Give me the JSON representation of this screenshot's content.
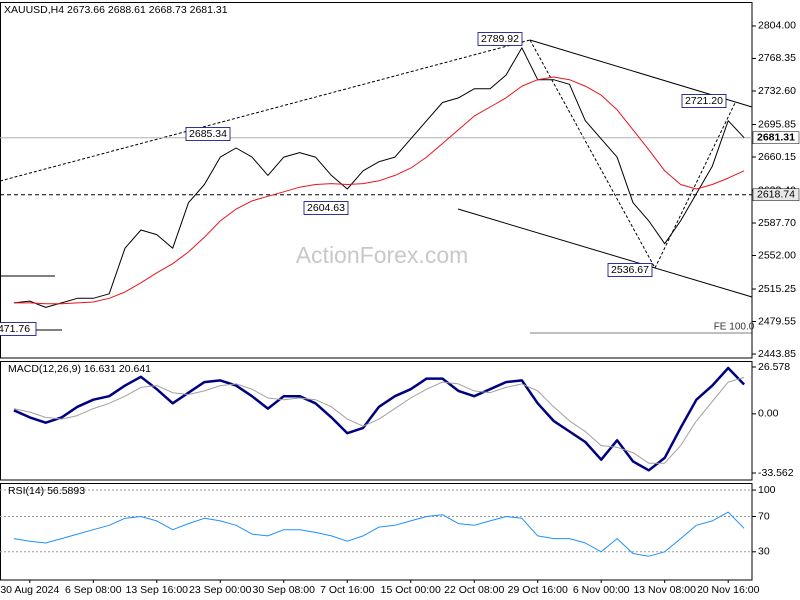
{
  "chart_data": [
    {
      "type": "line",
      "title": "XAUUSD,H4  2673.66 2688.61 2668.73 2681.31",
      "watermark": "ActionForex.com",
      "series": [
        {
          "color": "#000000",
          "values": [
            2500,
            2502,
            2495,
            2500,
            2505,
            2505,
            2510,
            2560,
            2580,
            2575,
            2560,
            2610,
            2630,
            2660,
            2670,
            2660,
            2640,
            2660,
            2665,
            2660,
            2640,
            2625,
            2645,
            2655,
            2660,
            2680,
            2700,
            2720,
            2725,
            2735,
            2735,
            2750,
            2780,
            2745,
            2745,
            2740,
            2700,
            2680,
            2660,
            2610,
            2590,
            2565,
            2590,
            2620,
            2650,
            2700,
            2681.31
          ]
        },
        {
          "color": "#e8141c",
          "values": [
            2500,
            2500,
            2499,
            2499,
            2500,
            2501,
            2505,
            2512,
            2522,
            2533,
            2543,
            2556,
            2572,
            2590,
            2603,
            2612,
            2617,
            2622,
            2627,
            2630,
            2631,
            2630,
            2631,
            2634,
            2640,
            2648,
            2660,
            2675,
            2690,
            2705,
            2715,
            2725,
            2738,
            2745,
            2748,
            2745,
            2738,
            2728,
            2712,
            2690,
            2668,
            2645,
            2630,
            2625,
            2630,
            2637,
            2645
          ]
        }
      ],
      "ylim": [
        2439.5,
        2830.3
      ],
      "yticks": [
        {
          "value": 2804,
          "label": "2804.00"
        },
        {
          "value": 2768.35,
          "label": "2768.35"
        },
        {
          "value": 2732.6,
          "label": "2732.60"
        },
        {
          "value": 2695.85,
          "label": "2695.85"
        },
        {
          "value": 2660.15,
          "label": "2660.15"
        },
        {
          "value": 2623.4,
          "label": "2623.40"
        },
        {
          "value": 2587.7,
          "label": "2587.70"
        },
        {
          "value": 2552,
          "label": "2552.00"
        },
        {
          "value": 2515.25,
          "label": "2515.25"
        },
        {
          "value": 2479.55,
          "label": "2479.55"
        },
        {
          "value": 2443.85,
          "label": "2443.85"
        }
      ],
      "current_price": 2681.31,
      "level": 2618.74,
      "annotations": [
        "2789.92",
        "2685.34",
        "2604.63",
        "2536.67",
        "2721.20",
        "471.76",
        "FE 100.0"
      ]
    },
    {
      "type": "line",
      "title": "MACD(12,26,9) 16.631 20.641",
      "series": [
        {
          "color": "#000080",
          "values": [
            2,
            -2,
            -5,
            -2,
            4,
            8,
            10,
            16,
            21,
            14,
            6,
            12,
            18,
            19,
            16,
            10,
            3,
            10,
            10,
            6,
            -2,
            -11,
            -8,
            4,
            10,
            14,
            20,
            20,
            13,
            10,
            14,
            18,
            19,
            6,
            -4,
            -10,
            -16,
            -26,
            -15,
            -27,
            -32,
            -25,
            -8,
            8,
            16,
            26,
            16.631
          ]
        },
        {
          "color": "#a0a0a0",
          "values": [
            3,
            1,
            -2,
            -3,
            -1,
            3,
            6,
            10,
            15,
            16,
            12,
            11,
            13,
            16,
            17,
            14,
            9,
            8,
            9,
            8,
            4,
            -3,
            -7,
            -3,
            3,
            9,
            14,
            18,
            17,
            13,
            12,
            15,
            17,
            13,
            4,
            -4,
            -10,
            -18,
            -19,
            -22,
            -28,
            -28,
            -18,
            -4,
            7,
            18,
            20.641
          ]
        }
      ],
      "ylim": [
        -37.53,
        29.98
      ],
      "yticks": [
        26.578,
        {
          "value": 0,
          "label": "0.00"
        },
        -33.562
      ]
    },
    {
      "type": "line",
      "title": "RSI(14) 56.5893",
      "series": [
        {
          "color": "#1e90ff",
          "values": [
            45,
            42,
            40,
            45,
            50,
            55,
            60,
            68,
            70,
            65,
            55,
            62,
            68,
            65,
            60,
            50,
            48,
            55,
            55,
            52,
            48,
            42,
            48,
            58,
            60,
            65,
            70,
            72,
            62,
            60,
            65,
            70,
            68,
            48,
            45,
            45,
            40,
            30,
            45,
            28,
            25,
            30,
            45,
            60,
            65,
            75,
            56.5893
          ]
        }
      ],
      "ylim": [
        -2,
        108
      ],
      "yticks": [
        100,
        70,
        30
      ],
      "grid": true,
      "categories": [
        null,
        "30 Aug 2024",
        null,
        null,
        null,
        "6 Sep 08:00",
        null,
        null,
        null,
        "13 Sep 16:00",
        null,
        null,
        null,
        "23 Sep 00:00",
        null,
        null,
        null,
        "30 Sep 08:00",
        null,
        null,
        null,
        "7 Oct 16:00",
        null,
        null,
        null,
        "15 Oct 00:00",
        null,
        null,
        null,
        "22 Oct 08:00",
        null,
        null,
        null,
        "29 Oct 16:00",
        null,
        null,
        null,
        "6 Nov 00:00",
        null,
        null,
        null,
        "13 Nov 08:00",
        null,
        null,
        null,
        "20 Nov 16:00",
        null
      ]
    }
  ]
}
